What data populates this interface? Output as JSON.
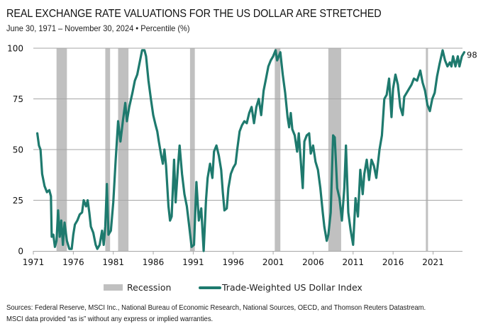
{
  "header": {
    "title": "REAL EXCHANGE RATE VALUATIONS FOR THE US DOLLAR ARE STRETCHED",
    "subtitle": "June 30, 1971 – November 30, 2024 • Percentile (%)"
  },
  "footer": {
    "line1": "Sources: Federal Reserve, MSCI Inc., National Bureau of Economic Research, National Sources, OECD, and Thomson Reuters Datastream.",
    "line2": "MSCI data provided “as is” without any express or implied warranties."
  },
  "colors": {
    "line": "#1e7a6e",
    "recession": "#c0c0c0",
    "grid": "#a6a6a6",
    "axis": "#a6a6a6"
  },
  "chart_data": {
    "type": "line",
    "title": "REAL EXCHANGE RATE VALUATIONS FOR THE US DOLLAR ARE STRETCHED",
    "subtitle": "June 30, 1971 – November 30, 2024 • Percentile (%)",
    "xlabel": "",
    "ylabel": "Percentile (%)",
    "xlim": [
      1971,
      2025
    ],
    "ylim": [
      0,
      100
    ],
    "x_ticks": [
      "1971",
      "1976",
      "1981",
      "1986",
      "1991",
      "1996",
      "2001",
      "2006",
      "2011",
      "2016",
      "2021"
    ],
    "y_ticks": [
      "0",
      "25",
      "50",
      "75",
      "100"
    ],
    "grid": "horizontal",
    "legend_position": "bottom",
    "legend": [
      "Recession",
      "Trade-Weighted US Dollar Index"
    ],
    "end_label": "98",
    "recessions": [
      {
        "start": 1973.9,
        "end": 1975.2
      },
      {
        "start": 1980.0,
        "end": 1980.6
      },
      {
        "start": 1981.6,
        "end": 1982.9
      },
      {
        "start": 1990.6,
        "end": 1991.2
      },
      {
        "start": 2001.2,
        "end": 2001.9
      },
      {
        "start": 2007.9,
        "end": 2009.5
      },
      {
        "start": 2020.1,
        "end": 2020.3
      }
    ],
    "series": [
      {
        "name": "Trade-Weighted US Dollar Index",
        "x": [
          1971.5,
          1971.7,
          1971.9,
          1972.1,
          1972.4,
          1972.7,
          1973.0,
          1973.2,
          1973.3,
          1973.5,
          1973.7,
          1973.9,
          1974.1,
          1974.3,
          1974.5,
          1974.7,
          1974.9,
          1975.2,
          1975.5,
          1975.8,
          1976.0,
          1976.2,
          1976.5,
          1976.8,
          1977.1,
          1977.3,
          1977.6,
          1977.8,
          1978.0,
          1978.2,
          1978.5,
          1978.8,
          1979.0,
          1979.3,
          1979.6,
          1979.8,
          1980.0,
          1980.2,
          1980.4,
          1980.7,
          1981.0,
          1981.3,
          1981.6,
          1981.9,
          1982.2,
          1982.5,
          1982.7,
          1983.0,
          1983.4,
          1983.7,
          1984.0,
          1984.3,
          1984.6,
          1984.9,
          1985.1,
          1985.4,
          1985.7,
          1986.0,
          1986.3,
          1986.5,
          1986.7,
          1987.0,
          1987.2,
          1987.4,
          1987.6,
          1987.9,
          1988.1,
          1988.3,
          1988.6,
          1988.8,
          1989.1,
          1989.3,
          1989.6,
          1989.9,
          1990.2,
          1990.5,
          1990.8,
          1991.1,
          1991.4,
          1991.7,
          1992.0,
          1992.3,
          1992.6,
          1992.8,
          1993.1,
          1993.4,
          1993.6,
          1993.9,
          1994.2,
          1994.5,
          1994.7,
          1994.9,
          1995.2,
          1995.4,
          1995.7,
          1996.0,
          1996.3,
          1996.5,
          1996.8,
          1997.1,
          1997.4,
          1997.7,
          1998.0,
          1998.3,
          1998.6,
          1998.9,
          1999.2,
          1999.5,
          1999.8,
          2000.1,
          2000.4,
          2000.7,
          2001.0,
          2001.3,
          2001.5,
          2001.9,
          2002.2,
          2002.5,
          2002.8,
          2003.0,
          2003.2,
          2003.4,
          2003.7,
          2004.0,
          2004.2,
          2004.5,
          2004.7,
          2004.9,
          2005.2,
          2005.5,
          2005.7,
          2006.0,
          2006.3,
          2006.6,
          2006.9,
          2007.2,
          2007.4,
          2007.7,
          2007.9,
          2008.2,
          2008.5,
          2008.7,
          2009.0,
          2009.3,
          2009.6,
          2009.9,
          2010.1,
          2010.4,
          2010.7,
          2011.0,
          2011.3,
          2011.6,
          2011.9,
          2012.2,
          2012.4,
          2012.7,
          2013.0,
          2013.3,
          2013.6,
          2013.9,
          2014.3,
          2014.6,
          2014.9,
          2015.2,
          2015.5,
          2015.8,
          2016.0,
          2016.3,
          2016.6,
          2016.9,
          2017.2,
          2017.4,
          2017.7,
          2018.0,
          2018.3,
          2018.6,
          2019.0,
          2019.4,
          2019.7,
          2020.0,
          2020.3,
          2020.6,
          2020.9,
          2021.2,
          2021.5,
          2021.8,
          2022.2,
          2022.5,
          2022.8,
          2023.1,
          2023.3,
          2023.5,
          2023.8,
          2024.1,
          2024.3,
          2024.6,
          2024.9
        ],
        "values": [
          58,
          52,
          50,
          38,
          32,
          29,
          30,
          27,
          7,
          8,
          2,
          5,
          20,
          7,
          15,
          3,
          14,
          5,
          1,
          1,
          8,
          13,
          15,
          18,
          19,
          25,
          22,
          25,
          19,
          12,
          9,
          3,
          1,
          3,
          10,
          3,
          12,
          33,
          8,
          10,
          24,
          45,
          64,
          54,
          64,
          73,
          64,
          71,
          78,
          84,
          87,
          93,
          99,
          99,
          96,
          84,
          75,
          67,
          62,
          59,
          54,
          47,
          43,
          50,
          42,
          22,
          15,
          17,
          45,
          24,
          42,
          52,
          38,
          28,
          22,
          12,
          2,
          3,
          34,
          15,
          21,
          0,
          25,
          36,
          43,
          36,
          49,
          52,
          47,
          40,
          29,
          20,
          21,
          31,
          38,
          41,
          43,
          50,
          59,
          62,
          64,
          63,
          68,
          71,
          63,
          71,
          75,
          67,
          79,
          85,
          91,
          94,
          96,
          99,
          94,
          98,
          87,
          78,
          66,
          61,
          68,
          60,
          57,
          49,
          58,
          42,
          31,
          54,
          57,
          58,
          48,
          52,
          44,
          40,
          31,
          19,
          12,
          5,
          8,
          19,
          57,
          56,
          31,
          26,
          15,
          31,
          52,
          19,
          10,
          3,
          26,
          17,
          40,
          28,
          38,
          45,
          35,
          45,
          42,
          36,
          50,
          57,
          75,
          77,
          85,
          66,
          80,
          87,
          82,
          71,
          67,
          76,
          78,
          80,
          82,
          85,
          84,
          89,
          83,
          79,
          72,
          69,
          75,
          78,
          86,
          92,
          99,
          94,
          91,
          93,
          91,
          96,
          91,
          96,
          91,
          96,
          98
        ]
      }
    ]
  }
}
